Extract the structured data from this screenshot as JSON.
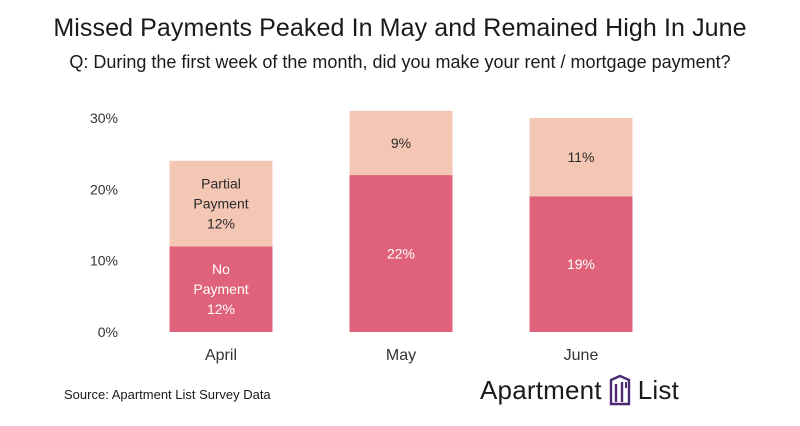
{
  "title": "Missed Payments Peaked In May and Remained High In June",
  "subtitle": "Q: During the first week of the month, did you make your rent / mortgage payment?",
  "source": "Source: Apartment List Survey Data",
  "logo": {
    "left_word": "Apartment",
    "right_word": "List",
    "icon": "building-logo-icon",
    "color": "#4b2a73"
  },
  "colors": {
    "no_payment": "#e0627a",
    "partial_payment": "#f4c7b4",
    "axis_text": "#333333",
    "grid": "#d9d9d9"
  },
  "chart_data": {
    "type": "bar",
    "stacked": true,
    "categories": [
      "April",
      "May",
      "June"
    ],
    "ylim": [
      0,
      30
    ],
    "yticks": [
      "0%",
      "10%",
      "20%",
      "30%"
    ],
    "grid": false,
    "series": [
      {
        "name": "No Payment",
        "values": [
          12,
          22,
          19
        ],
        "labels": [
          "12%",
          "22%",
          "19%"
        ],
        "color": "#e0627a"
      },
      {
        "name": "Partial Payment",
        "values": [
          12,
          9,
          11
        ],
        "labels": [
          "12%",
          "9%",
          "11%"
        ],
        "color": "#f4c7b4"
      }
    ],
    "inline_legend": {
      "category": "April",
      "no_payment_text": [
        "No",
        "Payment"
      ],
      "partial_payment_text": [
        "Partial",
        "Payment"
      ]
    }
  }
}
